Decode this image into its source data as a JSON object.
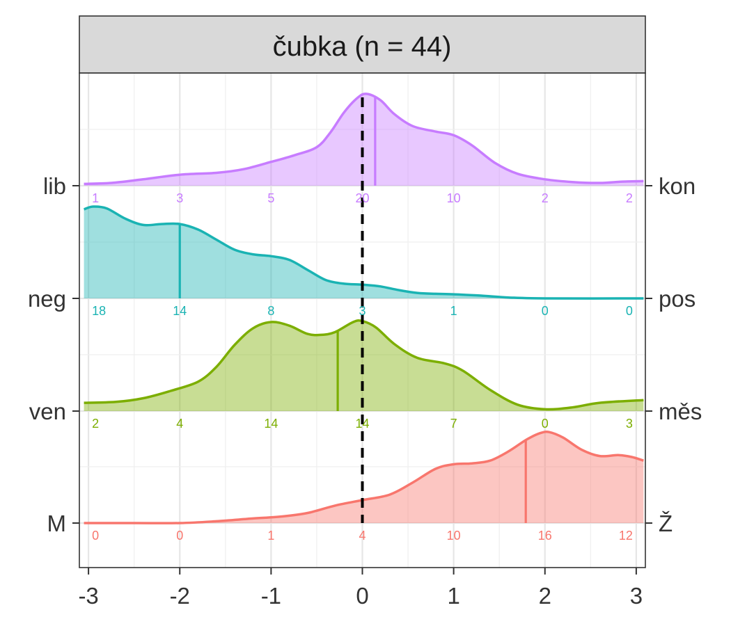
{
  "chart_data": {
    "type": "ridgeline-density",
    "title": "čubka (n = 44)",
    "xlim": [
      -3.1,
      3.1
    ],
    "x_ticks": [
      -3,
      -2,
      -1,
      0,
      1,
      2,
      3
    ],
    "x_tick_labels": [
      "-3",
      "-2",
      "-1",
      "0",
      "1",
      "2",
      "3"
    ],
    "reference_line": {
      "x": 0,
      "style": "dashed"
    },
    "grid": true,
    "scales": [
      {
        "left_label": "lib",
        "right_label": "kon",
        "color": "#C77CFF",
        "mean": 0.14,
        "counts": [
          1,
          3,
          5,
          20,
          10,
          2,
          2
        ],
        "density": [
          [
            -3.05,
            0.02
          ],
          [
            -2.75,
            0.03
          ],
          [
            -2.4,
            0.07
          ],
          [
            -2.0,
            0.12
          ],
          [
            -1.6,
            0.14
          ],
          [
            -1.3,
            0.18
          ],
          [
            -1.0,
            0.26
          ],
          [
            -0.75,
            0.33
          ],
          [
            -0.5,
            0.42
          ],
          [
            -0.35,
            0.58
          ],
          [
            -0.2,
            0.8
          ],
          [
            -0.05,
            0.96
          ],
          [
            0.05,
            1.0
          ],
          [
            0.2,
            0.93
          ],
          [
            0.35,
            0.78
          ],
          [
            0.55,
            0.65
          ],
          [
            0.8,
            0.59
          ],
          [
            1.0,
            0.55
          ],
          [
            1.2,
            0.44
          ],
          [
            1.45,
            0.25
          ],
          [
            1.7,
            0.13
          ],
          [
            2.0,
            0.07
          ],
          [
            2.3,
            0.04
          ],
          [
            2.6,
            0.03
          ],
          [
            2.85,
            0.045
          ],
          [
            3.08,
            0.05
          ]
        ]
      },
      {
        "left_label": "neg",
        "right_label": "pos",
        "color": "#1AB3B3",
        "mean": -2.0,
        "counts": [
          18,
          14,
          8,
          3,
          1,
          0,
          0
        ],
        "density": [
          [
            -3.05,
            0.97
          ],
          [
            -2.95,
            1.0
          ],
          [
            -2.8,
            0.98
          ],
          [
            -2.6,
            0.87
          ],
          [
            -2.4,
            0.8
          ],
          [
            -2.2,
            0.81
          ],
          [
            -2.0,
            0.81
          ],
          [
            -1.8,
            0.75
          ],
          [
            -1.6,
            0.64
          ],
          [
            -1.4,
            0.53
          ],
          [
            -1.2,
            0.48
          ],
          [
            -1.0,
            0.46
          ],
          [
            -0.8,
            0.42
          ],
          [
            -0.6,
            0.31
          ],
          [
            -0.4,
            0.2
          ],
          [
            -0.2,
            0.16
          ],
          [
            0.0,
            0.15
          ],
          [
            0.2,
            0.13
          ],
          [
            0.4,
            0.09
          ],
          [
            0.6,
            0.06
          ],
          [
            0.8,
            0.05
          ],
          [
            1.0,
            0.045
          ],
          [
            1.3,
            0.03
          ],
          [
            1.6,
            0.01
          ],
          [
            2.0,
            0.0
          ],
          [
            3.08,
            0.0
          ]
        ]
      },
      {
        "left_label": "ven",
        "right_label": "měs",
        "color": "#7CAE00",
        "mean": -0.27,
        "counts": [
          2,
          4,
          14,
          14,
          7,
          0,
          3
        ],
        "density": [
          [
            -3.05,
            0.09
          ],
          [
            -2.7,
            0.1
          ],
          [
            -2.4,
            0.14
          ],
          [
            -2.1,
            0.22
          ],
          [
            -1.8,
            0.32
          ],
          [
            -1.6,
            0.48
          ],
          [
            -1.4,
            0.72
          ],
          [
            -1.2,
            0.9
          ],
          [
            -1.0,
            0.97
          ],
          [
            -0.8,
            0.93
          ],
          [
            -0.6,
            0.84
          ],
          [
            -0.45,
            0.83
          ],
          [
            -0.3,
            0.86
          ],
          [
            -0.1,
            0.97
          ],
          [
            0.0,
            0.98
          ],
          [
            0.15,
            0.91
          ],
          [
            0.35,
            0.73
          ],
          [
            0.6,
            0.58
          ],
          [
            0.9,
            0.52
          ],
          [
            1.1,
            0.44
          ],
          [
            1.4,
            0.23
          ],
          [
            1.7,
            0.07
          ],
          [
            2.0,
            0.02
          ],
          [
            2.3,
            0.04
          ],
          [
            2.6,
            0.09
          ],
          [
            3.08,
            0.12
          ]
        ]
      },
      {
        "left_label": "M",
        "right_label": "Ž",
        "color": "#F8766D",
        "mean": 1.79,
        "counts": [
          0,
          0,
          1,
          4,
          10,
          16,
          12
        ],
        "density": [
          [
            -3.05,
            0.0
          ],
          [
            -2.5,
            0.0
          ],
          [
            -2.0,
            0.0
          ],
          [
            -1.6,
            0.02
          ],
          [
            -1.2,
            0.05
          ],
          [
            -0.9,
            0.07
          ],
          [
            -0.6,
            0.11
          ],
          [
            -0.3,
            0.19
          ],
          [
            0.0,
            0.25
          ],
          [
            0.3,
            0.31
          ],
          [
            0.55,
            0.44
          ],
          [
            0.8,
            0.59
          ],
          [
            1.0,
            0.64
          ],
          [
            1.2,
            0.65
          ],
          [
            1.4,
            0.68
          ],
          [
            1.6,
            0.78
          ],
          [
            1.8,
            0.91
          ],
          [
            1.95,
            0.98
          ],
          [
            2.05,
            0.99
          ],
          [
            2.2,
            0.93
          ],
          [
            2.4,
            0.8
          ],
          [
            2.6,
            0.73
          ],
          [
            2.8,
            0.74
          ],
          [
            2.95,
            0.72
          ],
          [
            3.08,
            0.68
          ]
        ]
      }
    ]
  }
}
